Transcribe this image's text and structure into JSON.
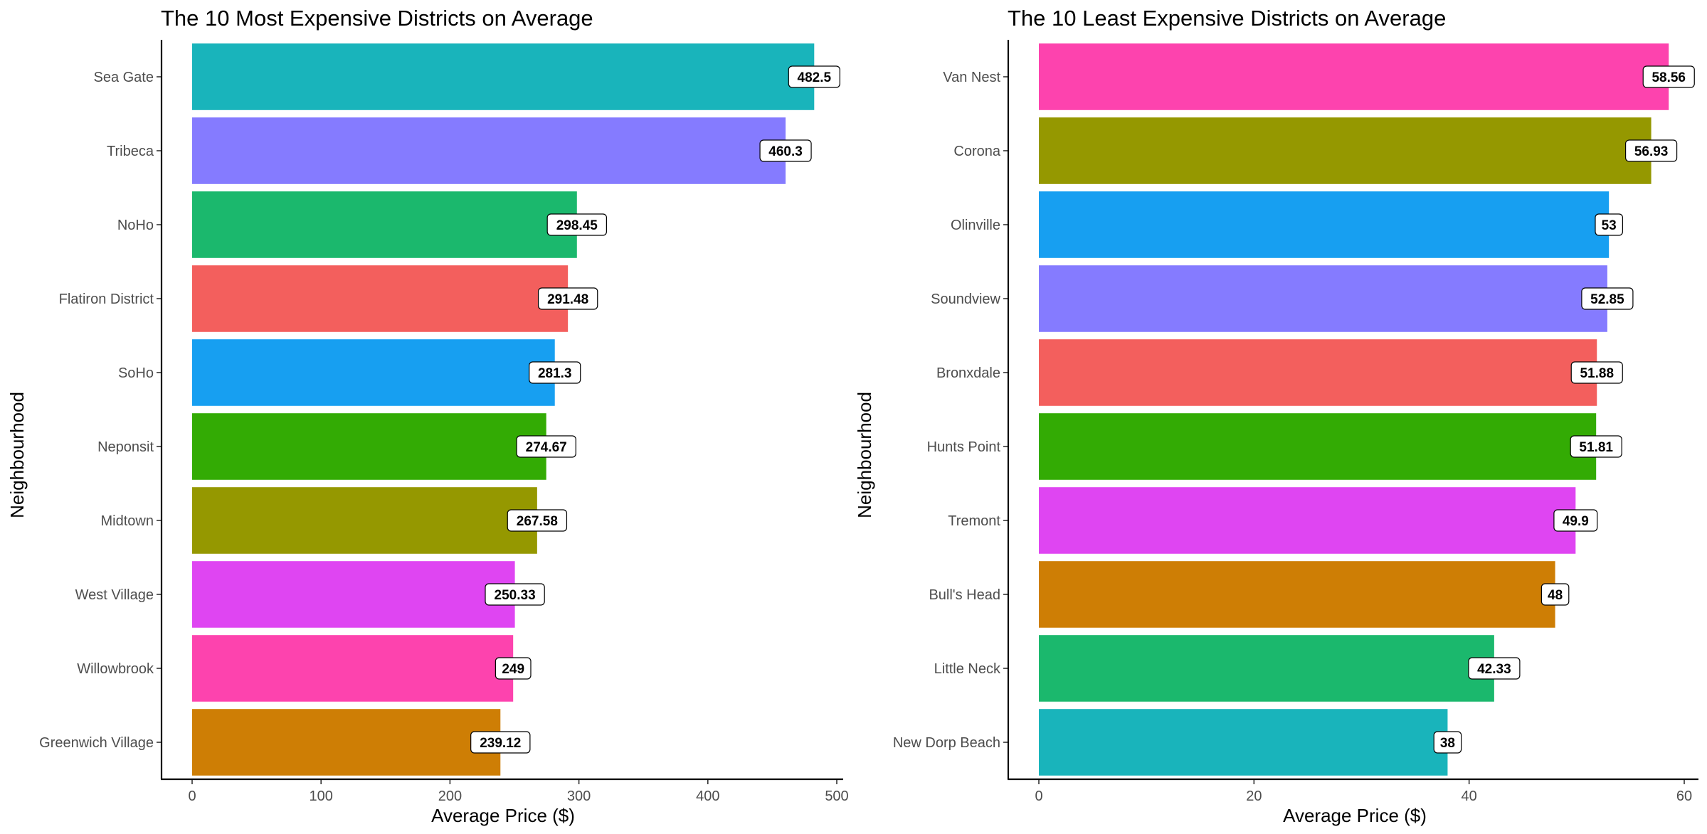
{
  "chart_data": [
    {
      "type": "bar",
      "orientation": "horizontal",
      "title": "The 10 Most Expensive Districts on Average",
      "xlabel": "Average Price ($)",
      "ylabel": "Neighbourhood",
      "xlim": [
        0,
        500
      ],
      "xticks": [
        0,
        100,
        200,
        300,
        400,
        500
      ],
      "grid": false,
      "legend": "none",
      "categories": [
        "Sea Gate",
        "Tribeca",
        "NoHo",
        "Flatiron District",
        "SoHo",
        "Neponsit",
        "Midtown",
        "West Village",
        "Willowbrook",
        "Greenwich Village"
      ],
      "values": [
        482.5,
        460.3,
        298.45,
        291.48,
        281.3,
        274.67,
        267.58,
        250.33,
        249,
        239.12
      ],
      "labels": [
        "482.5",
        "460.3",
        "298.45",
        "291.48",
        "281.3",
        "274.67",
        "267.58",
        "250.33",
        "249",
        "239.12"
      ],
      "colors": [
        "#19B4BB",
        "#857BFF",
        "#1BB86D",
        "#F35F5D",
        "#179FF1",
        "#33AB04",
        "#959800",
        "#DF45F2",
        "#FD43AE",
        "#CE7E05"
      ]
    },
    {
      "type": "bar",
      "orientation": "horizontal",
      "title": "The 10 Least Expensive Districts on Average",
      "xlabel": "Average Price ($)",
      "ylabel": "Neighbourhood",
      "xlim": [
        0,
        60
      ],
      "xticks": [
        0,
        20,
        40,
        60
      ],
      "grid": false,
      "legend": "none",
      "categories": [
        "Van Nest",
        "Corona",
        "Olinville",
        "Soundview",
        "Bronxdale",
        "Hunts Point",
        "Tremont",
        "Bull's Head",
        "Little Neck",
        "New Dorp Beach"
      ],
      "values": [
        58.56,
        56.93,
        53,
        52.85,
        51.88,
        51.81,
        49.9,
        48,
        42.33,
        38
      ],
      "labels": [
        "58.56",
        "56.93",
        "53",
        "52.85",
        "51.88",
        "51.81",
        "49.9",
        "48",
        "42.33",
        "38"
      ],
      "colors": [
        "#FD43AE",
        "#959800",
        "#179FF1",
        "#857BFF",
        "#F35F5D",
        "#33AB04",
        "#DF45F2",
        "#CE7E05",
        "#1BB86D",
        "#19B4BB"
      ]
    }
  ]
}
